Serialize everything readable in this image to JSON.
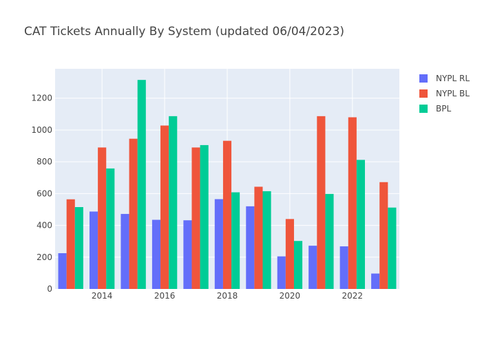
{
  "chart_data": {
    "type": "bar",
    "title": "CAT Tickets Annually By System (updated 06/04/2023)",
    "xlabel": "",
    "ylabel": "",
    "categories": [
      2013,
      2014,
      2015,
      2016,
      2017,
      2018,
      2019,
      2020,
      2021,
      2022,
      2023
    ],
    "x_tick_labels": [
      "2014",
      "2016",
      "2018",
      "2020",
      "2022"
    ],
    "x_tick_values": [
      2014,
      2016,
      2018,
      2020,
      2022
    ],
    "y_tick_values": [
      0,
      200,
      400,
      600,
      800,
      1000,
      1200
    ],
    "y_tick_labels": [
      "0",
      "200",
      "400",
      "600",
      "800",
      "1000",
      "1200"
    ],
    "ylim": [
      0,
      1385
    ],
    "grid": true,
    "legend_position": "top-right",
    "series": [
      {
        "name": "NYPL RL",
        "color": "#636efa",
        "values": [
          225,
          487,
          472,
          435,
          432,
          565,
          520,
          205,
          272,
          268,
          97
        ]
      },
      {
        "name": "NYPL BL",
        "color": "#ef553b",
        "values": [
          564,
          890,
          945,
          1028,
          890,
          932,
          643,
          440,
          1087,
          1080,
          672
        ]
      },
      {
        "name": "BPL",
        "color": "#00cc96",
        "values": [
          515,
          758,
          1315,
          1087,
          905,
          608,
          615,
          302,
          598,
          812,
          512
        ]
      }
    ]
  }
}
